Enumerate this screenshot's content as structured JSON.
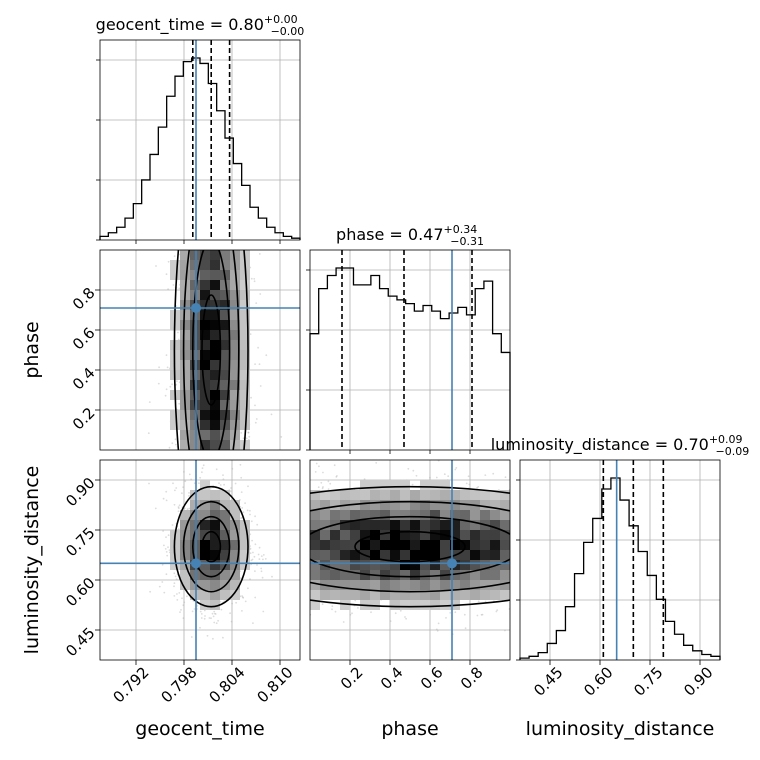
{
  "truth_color": "#4682b4",
  "chart_data": {
    "type": "corner",
    "parameters": [
      {
        "key": "geocent_time",
        "axis_label": "geocent_time",
        "range": [
          0.7875,
          0.8125
        ],
        "ticks": [
          "0.792",
          "0.798",
          "0.804",
          "0.810"
        ],
        "tick_values": [
          0.792,
          0.798,
          0.804,
          0.81
        ],
        "title_prefix": "geocent_time = 0.80",
        "title_plus": "+0.00",
        "title_minus": "−0.00",
        "median": 0.8014,
        "q16": 0.7991,
        "q84": 0.8037,
        "truth": 0.7995,
        "hist": [
          0.02,
          0.04,
          0.07,
          0.12,
          0.2,
          0.33,
          0.47,
          0.62,
          0.79,
          0.9,
          0.98,
          1.0,
          0.97,
          0.86,
          0.71,
          0.56,
          0.42,
          0.3,
          0.18,
          0.12,
          0.07,
          0.04,
          0.02,
          0.01
        ]
      },
      {
        "key": "phase",
        "axis_label": "phase",
        "range": [
          0.0,
          1.0
        ],
        "ticks": [
          "0.2",
          "0.4",
          "0.6",
          "0.8"
        ],
        "tick_values": [
          0.2,
          0.4,
          0.6,
          0.8
        ],
        "title_prefix": "phase = 0.47",
        "title_plus": "+0.34",
        "title_minus": "−0.31",
        "median": 0.47,
        "q16": 0.16,
        "q84": 0.81,
        "truth": 0.71,
        "hist": [
          0.62,
          0.86,
          0.93,
          0.97,
          0.97,
          0.88,
          0.88,
          0.93,
          0.86,
          0.82,
          0.8,
          0.78,
          0.74,
          0.77,
          0.74,
          0.7,
          0.73,
          0.76,
          0.72,
          0.86,
          0.9,
          0.62,
          0.52
        ]
      },
      {
        "key": "luminosity_distance",
        "axis_label": "luminosity_distance",
        "range": [
          0.36,
          0.96
        ],
        "ticks": [
          "0.45",
          "0.60",
          "0.75",
          "0.90"
        ],
        "tick_values": [
          0.45,
          0.6,
          0.75,
          0.9
        ],
        "title_prefix": "luminosity_distance = 0.70",
        "title_plus": "+0.09",
        "title_minus": "−0.09",
        "median": 0.7,
        "q16": 0.61,
        "q84": 0.79,
        "truth": 0.65,
        "hist": [
          0.01,
          0.02,
          0.04,
          0.09,
          0.16,
          0.29,
          0.47,
          0.64,
          0.77,
          0.93,
          0.99,
          0.87,
          0.73,
          0.59,
          0.46,
          0.33,
          0.21,
          0.14,
          0.08,
          0.05,
          0.03,
          0.02
        ]
      }
    ]
  }
}
